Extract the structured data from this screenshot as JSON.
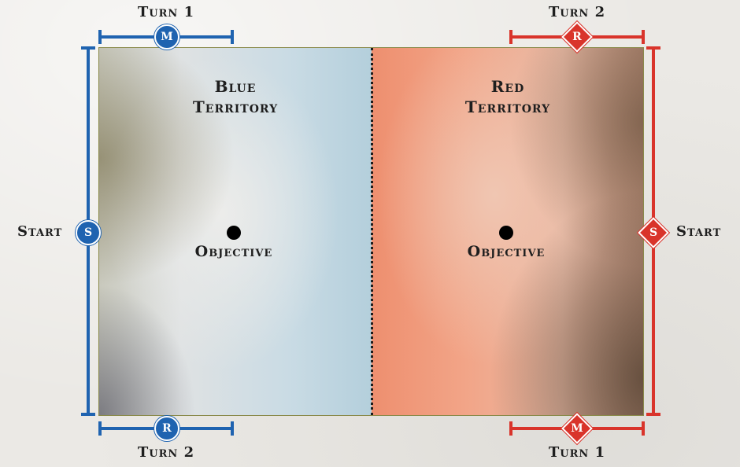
{
  "colors": {
    "blue": "#1f63b0",
    "red": "#d9342b"
  },
  "blue": {
    "territory_line1": "Blue",
    "territory_line2": "Territory",
    "objective": "Objective",
    "top_turn": "Turn 1",
    "top_marker": "M",
    "bottom_turn": "Turn 2",
    "bottom_marker": "R",
    "start_label": "Start",
    "start_marker": "S"
  },
  "red": {
    "territory_line1": "Red",
    "territory_line2": "Territory",
    "objective": "Objective",
    "top_turn": "Turn 2",
    "top_marker": "R",
    "bottom_turn": "Turn 1",
    "bottom_marker": "M",
    "start_label": "Start",
    "start_marker": "S"
  }
}
